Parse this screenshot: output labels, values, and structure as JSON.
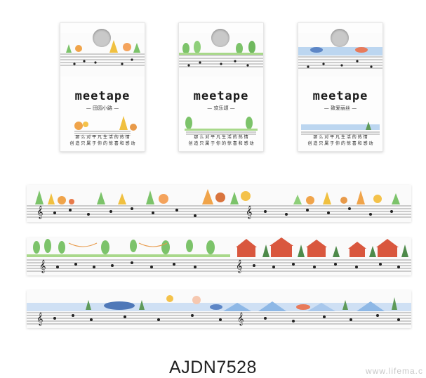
{
  "packages": [
    {
      "brand": "meetape",
      "subtitle": "— 田园小路 —",
      "lines": [
        "那 么 对 平 凡 生 活 的 热 情",
        "创 造 只 属 于 你 的 惊 喜 和 感 动"
      ],
      "theme": "garden"
    },
    {
      "brand": "meetape",
      "subtitle": "— 欢乐颂 —",
      "lines": [
        "那 么 对 平 凡 生 活 的 热 情",
        "创 造 只 属 于 你 的 惊 喜 和 感 动"
      ],
      "theme": "village"
    },
    {
      "brand": "meetape",
      "subtitle": "— 致爱丽丝 —",
      "lines": [
        "那 么 对 平 凡 生 活 的 热 情",
        "创 造 只 属 于 你 的 惊 喜 和 感 动"
      ],
      "theme": "sea"
    }
  ],
  "strips": [
    {
      "theme": "garden"
    },
    {
      "theme": "village"
    },
    {
      "theme": "sea"
    }
  ],
  "product_code": "AJDN7528",
  "watermark": "www.lifema.c",
  "colors": {
    "tree_green": "#7cc36a",
    "tree_orange": "#f0a44a",
    "house_red": "#d9573e",
    "sea_blue": "#8eb8e6",
    "staff": "#333333"
  }
}
